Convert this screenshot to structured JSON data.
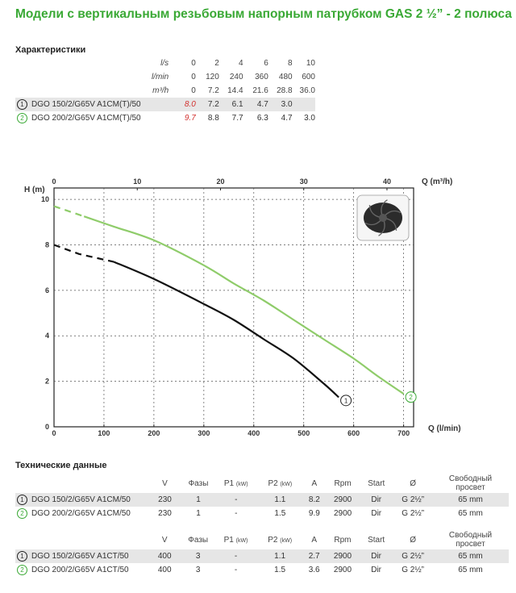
{
  "title": "Модели с вертикальным резьбовым напорным патрубком GAS 2 ½” - 2 полюса",
  "characteristics": {
    "heading": "Характеристики",
    "units": [
      "l/s",
      "l/min",
      "m³/h"
    ],
    "columns_ls": [
      "0",
      "2",
      "4",
      "6",
      "8",
      "10"
    ],
    "columns_lmin": [
      "0",
      "120",
      "240",
      "360",
      "480",
      "600"
    ],
    "columns_m3h": [
      "0",
      "7.2",
      "14.4",
      "21.6",
      "28.8",
      "36.0"
    ],
    "rows": [
      {
        "num": "1",
        "model": "DGO 150/2/G65V A1CM(T)/50",
        "values": [
          "8.0",
          "7.2",
          "6.1",
          "4.7",
          "3.0",
          ""
        ]
      },
      {
        "num": "2",
        "model": "DGO 200/2/G65V A1CM(T)/50",
        "values": [
          "9.7",
          "8.8",
          "7.7",
          "6.3",
          "4.7",
          "3.0"
        ]
      }
    ]
  },
  "chart_data": {
    "type": "line",
    "title": "",
    "ylabel": "H (m)",
    "xlabel": "Q (l/min)",
    "x2label": "Q (m³/h)",
    "xlim": [
      0,
      720
    ],
    "ylim": [
      0,
      10.5
    ],
    "x2lim": [
      0,
      43.2
    ],
    "xticks": [
      0,
      100,
      200,
      300,
      400,
      500,
      600,
      700
    ],
    "yticks": [
      0,
      2,
      4,
      6,
      8,
      10
    ],
    "x2ticks": [
      0,
      10,
      20,
      30,
      40
    ],
    "grid": true,
    "series": [
      {
        "name": "1",
        "color": "#111111",
        "x": [
          0,
          50,
          120,
          200,
          300,
          360,
          420,
          480,
          540,
          570
        ],
        "y": [
          8.0,
          7.6,
          7.25,
          6.5,
          5.4,
          4.7,
          3.85,
          3.0,
          1.9,
          1.3
        ],
        "dashed_until": 60
      },
      {
        "name": "2",
        "color": "#8fcc6a",
        "x": [
          0,
          60,
          120,
          200,
          300,
          360,
          420,
          480,
          540,
          600,
          650,
          700
        ],
        "y": [
          9.7,
          9.25,
          8.8,
          8.2,
          7.1,
          6.3,
          5.55,
          4.7,
          3.85,
          3.0,
          2.2,
          1.45
        ],
        "dashed_until": 60
      }
    ],
    "markers": [
      "1",
      "2"
    ],
    "impeller": "impeller-image"
  },
  "tech": {
    "heading": "Технические данные",
    "cols": [
      "V",
      "Фазы",
      "P1",
      "(kW)",
      "P2",
      "(kW)",
      "A",
      "Rpm",
      "Start",
      "Ø",
      "Свободный",
      "просвет"
    ],
    "group1": [
      {
        "num": "1",
        "model": "DGO 150/2/G65V A1CM/50",
        "v": "230",
        "phases": "1",
        "p1": "-",
        "p2": "1.1",
        "a": "8.2",
        "rpm": "2900",
        "start": "Dir",
        "d": "G 2½”",
        "free": "65 mm"
      },
      {
        "num": "2",
        "model": "DGO 200/2/G65V A1CM/50",
        "v": "230",
        "phases": "1",
        "p1": "-",
        "p2": "1.5",
        "a": "9.9",
        "rpm": "2900",
        "start": "Dir",
        "d": "G 2½”",
        "free": "65 mm"
      }
    ],
    "group2": [
      {
        "num": "1",
        "model": "DGO 150/2/G65V A1CT/50",
        "v": "400",
        "phases": "3",
        "p1": "-",
        "p2": "1.1",
        "a": "2.7",
        "rpm": "2900",
        "start": "Dir",
        "d": "G 2½”",
        "free": "65 mm"
      },
      {
        "num": "2",
        "model": "DGO 200/2/G65V A1CT/50",
        "v": "400",
        "phases": "3",
        "p1": "-",
        "p2": "1.5",
        "a": "3.6",
        "rpm": "2900",
        "start": "Dir",
        "d": "G 2½”",
        "free": "65 mm"
      }
    ]
  }
}
